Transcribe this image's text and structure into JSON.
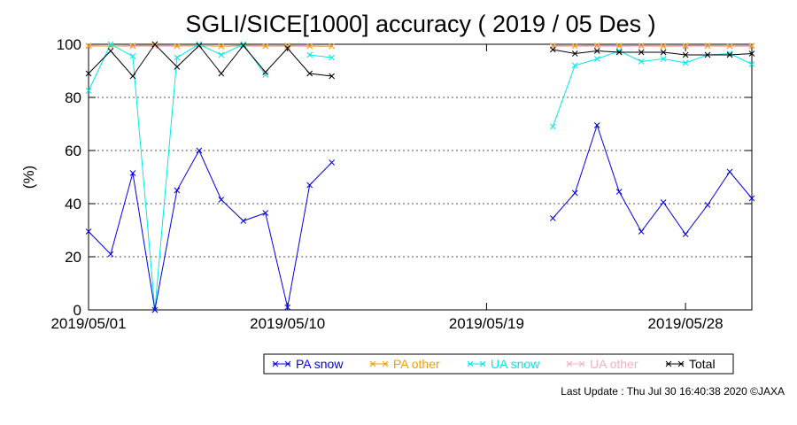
{
  "chart_data": {
    "type": "line",
    "title": "SGLI/SICE[1000] accuracy ( 2019 / 05 Des )",
    "ylabel": "(%)",
    "xlabel": "",
    "ylim": [
      0,
      100
    ],
    "xlim": [
      "2019/05/01",
      "2019/05/31"
    ],
    "yticks": [
      0,
      20,
      40,
      60,
      80,
      100
    ],
    "xticks": [
      "2019/05/01",
      "2019/05/10",
      "2019/05/19",
      "2019/05/28"
    ],
    "grid": "horizontal dotted",
    "legend_position": "bottom",
    "series": [
      {
        "name": "PA snow",
        "color": "#0000e0",
        "points": [
          {
            "x": "2019/05/01",
            "y": 29.5
          },
          {
            "x": "2019/05/02",
            "y": 21
          },
          {
            "x": "2019/05/03",
            "y": 51.5
          },
          {
            "x": "2019/05/04",
            "y": 0
          },
          {
            "x": "2019/05/05",
            "y": 45
          },
          {
            "x": "2019/05/06",
            "y": 60
          },
          {
            "x": "2019/05/07",
            "y": 41.5
          },
          {
            "x": "2019/05/08",
            "y": 33.5
          },
          {
            "x": "2019/05/09",
            "y": 36.5
          },
          {
            "x": "2019/05/10",
            "y": 1
          },
          {
            "x": "2019/05/11",
            "y": 47
          },
          {
            "x": "2019/05/12",
            "y": 55.5
          },
          null,
          {
            "x": "2019/05/22",
            "y": 34.5
          },
          {
            "x": "2019/05/23",
            "y": 44
          },
          {
            "x": "2019/05/24",
            "y": 69.5
          },
          {
            "x": "2019/05/25",
            "y": 44.5
          },
          {
            "x": "2019/05/26",
            "y": 29.5
          },
          {
            "x": "2019/05/27",
            "y": 40.5
          },
          {
            "x": "2019/05/28",
            "y": 28.5
          },
          {
            "x": "2019/05/29",
            "y": 39.5
          },
          {
            "x": "2019/05/30",
            "y": 52
          },
          {
            "x": "2019/05/31",
            "y": 42
          }
        ]
      },
      {
        "name": "PA other",
        "color": "#f0a000",
        "points": [
          {
            "x": "2019/05/01",
            "y": 99.5
          },
          {
            "x": "2019/05/02",
            "y": 99.3
          },
          {
            "x": "2019/05/03",
            "y": 99.5
          },
          {
            "x": "2019/05/04",
            "y": 99.6
          },
          {
            "x": "2019/05/05",
            "y": 99.4
          },
          {
            "x": "2019/05/06",
            "y": 99.5
          },
          {
            "x": "2019/05/07",
            "y": 99.3
          },
          {
            "x": "2019/05/08",
            "y": 99.6
          },
          {
            "x": "2019/05/09",
            "y": 99.4
          },
          {
            "x": "2019/05/10",
            "y": 99.5
          },
          {
            "x": "2019/05/11",
            "y": 99.4
          },
          {
            "x": "2019/05/12",
            "y": 99.3
          },
          null,
          {
            "x": "2019/05/22",
            "y": 99.5
          },
          {
            "x": "2019/05/23",
            "y": 99.4
          },
          {
            "x": "2019/05/24",
            "y": 99.6
          },
          {
            "x": "2019/05/25",
            "y": 99.5
          },
          {
            "x": "2019/05/26",
            "y": 99.5
          },
          {
            "x": "2019/05/27",
            "y": 99.4
          },
          {
            "x": "2019/05/28",
            "y": 99.5
          },
          {
            "x": "2019/05/29",
            "y": 99.5
          },
          {
            "x": "2019/05/30",
            "y": 99.4
          },
          {
            "x": "2019/05/31",
            "y": 99.5
          }
        ]
      },
      {
        "name": "UA snow",
        "color": "#00e8e8",
        "points": [
          {
            "x": "2019/05/01",
            "y": 82.5
          },
          {
            "x": "2019/05/02",
            "y": 100
          },
          {
            "x": "2019/05/03",
            "y": 95.5
          },
          {
            "x": "2019/05/04",
            "y": 0
          },
          {
            "x": "2019/05/05",
            "y": 95
          },
          {
            "x": "2019/05/06",
            "y": 100
          },
          {
            "x": "2019/05/07",
            "y": 96
          },
          {
            "x": "2019/05/08",
            "y": 100
          },
          {
            "x": "2019/05/09",
            "y": 88.5
          },
          null,
          {
            "x": "2019/05/11",
            "y": 96
          },
          {
            "x": "2019/05/12",
            "y": 95
          },
          null,
          {
            "x": "2019/05/22",
            "y": 69
          },
          {
            "x": "2019/05/23",
            "y": 92
          },
          {
            "x": "2019/05/24",
            "y": 94.5
          },
          {
            "x": "2019/05/25",
            "y": 97.5
          },
          {
            "x": "2019/05/26",
            "y": 93.5
          },
          {
            "x": "2019/05/27",
            "y": 94.5
          },
          {
            "x": "2019/05/28",
            "y": 93
          },
          {
            "x": "2019/05/29",
            "y": 96
          },
          {
            "x": "2019/05/30",
            "y": 96.5
          },
          {
            "x": "2019/05/31",
            "y": 92.5
          }
        ]
      },
      {
        "name": "UA other",
        "color": "#f4b0c4",
        "points": [
          {
            "x": "2019/05/01",
            "y": 99.2
          },
          {
            "x": "2019/05/02",
            "y": 99.4
          },
          {
            "x": "2019/05/03",
            "y": 99.2
          },
          {
            "x": "2019/05/04",
            "y": 99.3
          },
          {
            "x": "2019/05/05",
            "y": 99.2
          },
          {
            "x": "2019/05/06",
            "y": 99.4
          },
          {
            "x": "2019/05/07",
            "y": 99.2
          },
          {
            "x": "2019/05/08",
            "y": 99.3
          },
          {
            "x": "2019/05/09",
            "y": 99.2
          },
          {
            "x": "2019/05/10",
            "y": 99.3
          },
          {
            "x": "2019/05/11",
            "y": 99.2
          },
          {
            "x": "2019/05/12",
            "y": 99.2
          },
          null,
          {
            "x": "2019/05/22",
            "y": 99.2
          },
          {
            "x": "2019/05/23",
            "y": 99.3
          },
          {
            "x": "2019/05/24",
            "y": 99.2
          },
          {
            "x": "2019/05/25",
            "y": 99.2
          },
          {
            "x": "2019/05/26",
            "y": 99.3
          },
          {
            "x": "2019/05/27",
            "y": 99.2
          },
          {
            "x": "2019/05/28",
            "y": 99.2
          },
          {
            "x": "2019/05/29",
            "y": 99.3
          },
          {
            "x": "2019/05/30",
            "y": 99.2
          },
          {
            "x": "2019/05/31",
            "y": 99.2
          }
        ]
      },
      {
        "name": "Total",
        "color": "#000000",
        "points": [
          {
            "x": "2019/05/01",
            "y": 89
          },
          {
            "x": "2019/05/02",
            "y": 97.5
          },
          {
            "x": "2019/05/03",
            "y": 88
          },
          {
            "x": "2019/05/04",
            "y": 100
          },
          {
            "x": "2019/05/05",
            "y": 91.5
          },
          {
            "x": "2019/05/06",
            "y": 99.5
          },
          {
            "x": "2019/05/07",
            "y": 89
          },
          {
            "x": "2019/05/08",
            "y": 99.5
          },
          {
            "x": "2019/05/09",
            "y": 89.5
          },
          {
            "x": "2019/05/10",
            "y": 98.5
          },
          {
            "x": "2019/05/11",
            "y": 89
          },
          {
            "x": "2019/05/12",
            "y": 88
          },
          null,
          {
            "x": "2019/05/22",
            "y": 98
          },
          {
            "x": "2019/05/23",
            "y": 96.5
          },
          {
            "x": "2019/05/24",
            "y": 97.5
          },
          {
            "x": "2019/05/25",
            "y": 97
          },
          {
            "x": "2019/05/26",
            "y": 97
          },
          {
            "x": "2019/05/27",
            "y": 97
          },
          {
            "x": "2019/05/28",
            "y": 96
          },
          {
            "x": "2019/05/29",
            "y": 96
          },
          {
            "x": "2019/05/30",
            "y": 96
          },
          {
            "x": "2019/05/31",
            "y": 96.5
          }
        ]
      }
    ]
  },
  "footer": {
    "last_update": "Last Update : Thu Jul 30 16:40:38 2020  ©JAXA"
  }
}
